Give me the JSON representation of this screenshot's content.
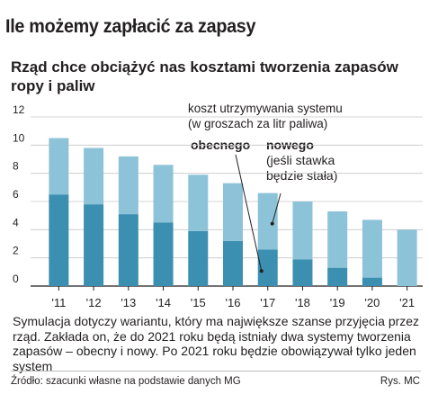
{
  "title": "Ile możemy zapłacić za zapasy",
  "subtitle": "Rząd chce obciążyć nas kosztami tworzenia zapasów ropy i paliw",
  "legend_note": [
    "koszt utrzymywania systemu",
    "(w groszach za litr paliwa)"
  ],
  "label_current": "obecnego",
  "label_new": "nowego",
  "label_new_note": [
    "(jeśli stawka",
    "będzie stała)"
  ],
  "footnote": "Symulacja dotyczy wariantu, który ma największe szanse przyjęcia przez rząd. Zakłada on, że do 2021 roku będą istniały dwa systemy tworzenia zapasów – obecny i nowy. Po 2021 roku będzie obowiązywał tylko jeden system",
  "source": "Źródło: szacunki własne na podstawie danych MG",
  "credit": "Rys. MC",
  "colors": {
    "current": "#3b8fb0",
    "new": "#8dc3d8",
    "grid": "#c7c7c7",
    "axis": "#231f20"
  },
  "chart_data": {
    "type": "bar",
    "stacked": true,
    "categories": [
      "'11",
      "'12",
      "'13",
      "'14",
      "'15",
      "'16",
      "'17",
      "'18",
      "'19",
      "'20",
      "'21"
    ],
    "series": [
      {
        "name": "obecnego",
        "values": [
          6.5,
          5.8,
          5.1,
          4.5,
          3.9,
          3.2,
          2.6,
          1.9,
          1.3,
          0.6,
          0
        ]
      },
      {
        "name": "nowego",
        "values": [
          4.0,
          4.0,
          4.1,
          4.1,
          4.0,
          4.1,
          4.0,
          4.1,
          4.0,
          4.1,
          4.0
        ]
      }
    ],
    "ylim": [
      0,
      12
    ],
    "yticks": [
      0,
      2,
      4,
      6,
      8,
      10,
      12
    ],
    "grid": true
  }
}
